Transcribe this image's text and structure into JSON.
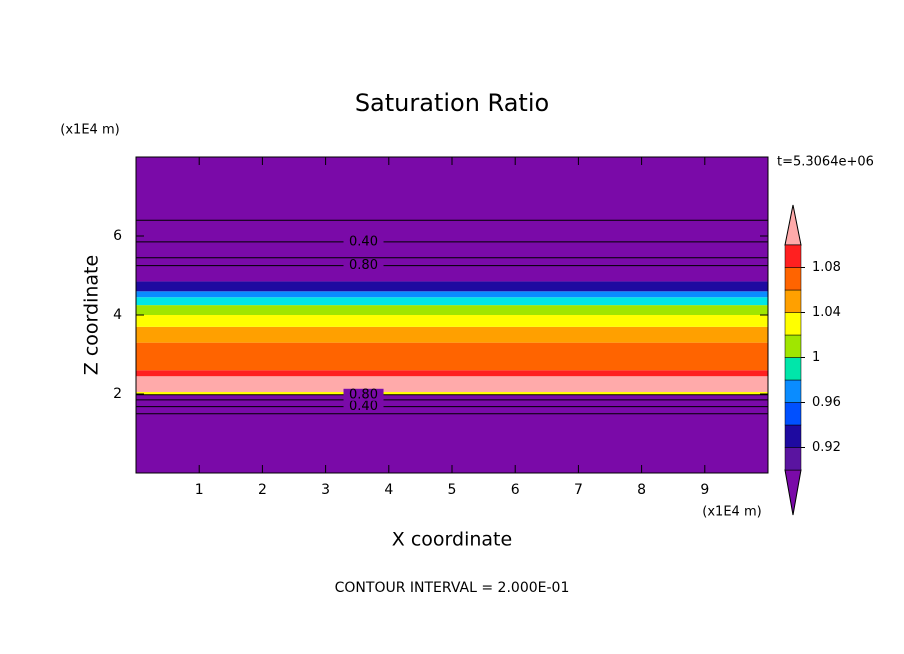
{
  "chart_data": {
    "type": "contour",
    "title": "Saturation Ratio",
    "xlabel": "X coordinate",
    "ylabel": "Z coordinate",
    "x_unit": "(x1E4 m)",
    "y_unit": "(x1E4 m)",
    "time_label": "t=5.3064e+06",
    "footer": "CONTOUR INTERVAL = 2.000E-01",
    "xlim": [
      0,
      10
    ],
    "xticks": [
      1,
      2,
      3,
      4,
      5,
      6,
      7,
      8,
      9
    ],
    "ylim": [
      0,
      8
    ],
    "yticks": [
      2,
      4,
      6
    ],
    "bands": [
      {
        "from": 0,
        "to": 1.98,
        "color": "#7a0aa8"
      },
      {
        "from": 1.98,
        "to": 2.05,
        "color": "#ffff00"
      },
      {
        "from": 2.05,
        "to": 2.45,
        "color": "#ffaaaa"
      },
      {
        "from": 2.45,
        "to": 2.6,
        "color": "#ff2020"
      },
      {
        "from": 2.6,
        "to": 3.3,
        "color": "#ff6400"
      },
      {
        "from": 3.3,
        "to": 3.7,
        "color": "#ffa000"
      },
      {
        "from": 3.7,
        "to": 4.0,
        "color": "#ffff00"
      },
      {
        "from": 4.0,
        "to": 4.25,
        "color": "#a0e600"
      },
      {
        "from": 4.25,
        "to": 4.45,
        "color": "#00e6e6"
      },
      {
        "from": 4.45,
        "to": 4.6,
        "color": "#0a8cff"
      },
      {
        "from": 4.6,
        "to": 4.85,
        "color": "#1e0aa0"
      },
      {
        "from": 4.85,
        "to": 8,
        "color": "#7a0aa8"
      }
    ],
    "contours": [
      {
        "z": 1.5
      },
      {
        "z": 1.68,
        "level": {
          "value": 0.4,
          "label": "0.40"
        }
      },
      {
        "z": 1.85
      },
      {
        "z": 1.98,
        "level": {
          "value": 0.8,
          "label": "0.80"
        }
      },
      {
        "z": 5.25,
        "level": {
          "value": 0.8,
          "label": "0.80"
        }
      },
      {
        "z": 5.45
      },
      {
        "z": 5.85,
        "level": {
          "value": 0.4,
          "label": "0.40"
        }
      },
      {
        "z": 6.4
      }
    ],
    "colorbar": {
      "levels": [
        0.9,
        0.92,
        0.94,
        0.96,
        0.98,
        1,
        1.02,
        1.04,
        1.06,
        1.08,
        1.1
      ],
      "colors": [
        "#5a14a0",
        "#1e0aa0",
        "#0050ff",
        "#0a8cff",
        "#00e6aa",
        "#a0e600",
        "#ffff00",
        "#ffa000",
        "#ff6400",
        "#ff2020"
      ],
      "under_color": "#7a0aa8",
      "over_color": "#ffaaaa",
      "ticks": [
        0.92,
        0.96,
        1,
        1.04,
        1.08
      ]
    }
  }
}
